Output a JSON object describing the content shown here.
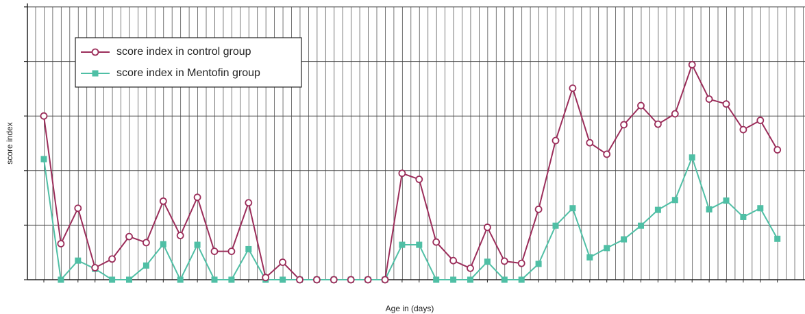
{
  "chart_data": {
    "type": "line",
    "x_label": "Age in (days)",
    "y_label": "score index",
    "categories": [
      null,
      null,
      null,
      null,
      null,
      null,
      null,
      null,
      null,
      null,
      null,
      null,
      null,
      null,
      null,
      null,
      null,
      null,
      null,
      null,
      null,
      null,
      null,
      null,
      null,
      null,
      null,
      null,
      null,
      null,
      null,
      null,
      null,
      null,
      null,
      null,
      null,
      null,
      null,
      null,
      null,
      null,
      null,
      null
    ],
    "series": [
      {
        "name": "score index in control group",
        "color": "#9b2d5a",
        "marker": "circle",
        "values": [
          3.0,
          0.66,
          1.31,
          0.22,
          0.38,
          0.79,
          0.68,
          1.44,
          0.81,
          1.51,
          0.52,
          0.52,
          1.41,
          0.04,
          0.32,
          0,
          0,
          0,
          0,
          0,
          0,
          1.95,
          1.84,
          0.69,
          0.35,
          0.21,
          0.96,
          0.34,
          0.3,
          1.29,
          2.55,
          3.51,
          2.51,
          2.3,
          2.84,
          3.19,
          2.85,
          3.04,
          3.94,
          3.31,
          3.22,
          2.75,
          2.92,
          2.38
        ]
      },
      {
        "name": "score index in Mentofin group",
        "color": "#4fbfa5",
        "marker": "square",
        "values": [
          2.21,
          0,
          0.35,
          0.2,
          0,
          0,
          0.26,
          0.65,
          0,
          0.64,
          0,
          0,
          0.56,
          0,
          0,
          0,
          0,
          0,
          0,
          0,
          0,
          0.64,
          0.64,
          0,
          0,
          0,
          0.33,
          0,
          0,
          0.29,
          0.99,
          1.31,
          0.41,
          0.58,
          0.74,
          0.99,
          1.28,
          1.46,
          2.24,
          1.29,
          1.45,
          1.15,
          1.31,
          0.75
        ]
      }
    ],
    "ylim": [
      0,
      5
    ],
    "yticks": [
      0,
      1,
      2,
      3,
      4,
      5
    ],
    "grid": true,
    "legend": "upper left"
  }
}
